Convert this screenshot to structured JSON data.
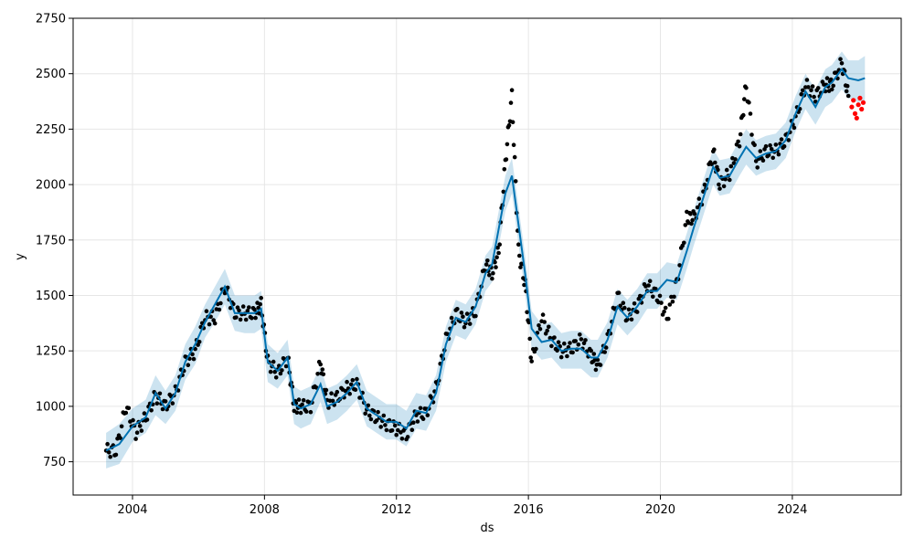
{
  "chart_data": {
    "type": "line",
    "title": "",
    "xlabel": "ds",
    "ylabel": "y",
    "xlim": [
      2002.2,
      2027.3
    ],
    "ylim": [
      600,
      2750
    ],
    "grid": true,
    "x_ticks": [
      2004,
      2008,
      2012,
      2016,
      2020,
      2024
    ],
    "x_tick_labels": [
      "2004",
      "2008",
      "2012",
      "2016",
      "2020",
      "2024"
    ],
    "y_ticks": [
      750,
      1000,
      1250,
      1500,
      1750,
      2000,
      2250,
      2500,
      2750
    ],
    "y_tick_labels": [
      "750",
      "1000",
      "1250",
      "1500",
      "1750",
      "2000",
      "2250",
      "2500",
      "2750"
    ],
    "colors": {
      "observed": "#000000",
      "recent": "#ff0000",
      "forecast": "#0072B2",
      "band": "#0072B2"
    },
    "forecast": {
      "x": [
        2003.2,
        2003.6,
        2004.0,
        2004.4,
        2004.7,
        2005.0,
        2005.3,
        2005.6,
        2005.9,
        2006.2,
        2006.5,
        2006.8,
        2007.1,
        2007.4,
        2007.7,
        2007.9,
        2008.1,
        2008.4,
        2008.7,
        2008.9,
        2009.1,
        2009.4,
        2009.7,
        2009.9,
        2010.2,
        2010.5,
        2010.8,
        2011.1,
        2011.4,
        2011.7,
        2012.0,
        2012.3,
        2012.6,
        2012.9,
        2013.2,
        2013.5,
        2013.8,
        2014.1,
        2014.4,
        2014.7,
        2014.9,
        2015.1,
        2015.3,
        2015.5,
        2015.7,
        2015.9,
        2016.1,
        2016.4,
        2016.7,
        2017.0,
        2017.3,
        2017.6,
        2017.9,
        2018.1,
        2018.4,
        2018.7,
        2019.0,
        2019.3,
        2019.6,
        2019.9,
        2020.2,
        2020.5,
        2020.8,
        2021.0,
        2021.3,
        2021.6,
        2021.8,
        2022.1,
        2022.4,
        2022.6,
        2022.9,
        2023.2,
        2023.5,
        2023.8,
        2024.1,
        2024.4,
        2024.7,
        2025.0,
        2025.2,
        2025.5,
        2025.7,
        2026.0,
        2026.2
      ],
      "yhat": [
        800,
        830,
        910,
        950,
        1060,
        990,
        1060,
        1200,
        1280,
        1380,
        1460,
        1540,
        1420,
        1420,
        1420,
        1440,
        1200,
        1160,
        1220,
        1010,
        990,
        1010,
        1100,
        1000,
        1020,
        1060,
        1110,
        990,
        960,
        930,
        930,
        900,
        980,
        970,
        1060,
        1280,
        1400,
        1380,
        1450,
        1600,
        1640,
        1800,
        1960,
        2040,
        1820,
        1600,
        1350,
        1290,
        1300,
        1250,
        1260,
        1260,
        1220,
        1220,
        1300,
        1450,
        1400,
        1450,
        1520,
        1520,
        1570,
        1560,
        1700,
        1800,
        1940,
        2080,
        2030,
        2040,
        2120,
        2170,
        2120,
        2140,
        2150,
        2200,
        2320,
        2420,
        2350,
        2440,
        2460,
        2520,
        2480,
        2470,
        2480
      ],
      "yhat_lower": [
        720,
        740,
        840,
        880,
        960,
        920,
        980,
        1120,
        1190,
        1310,
        1380,
        1460,
        1340,
        1330,
        1330,
        1350,
        1110,
        1080,
        1140,
        920,
        900,
        920,
        1020,
        920,
        940,
        980,
        1030,
        910,
        880,
        850,
        850,
        820,
        900,
        890,
        980,
        1200,
        1320,
        1300,
        1370,
        1520,
        1560,
        1720,
        1880,
        1960,
        1730,
        1510,
        1260,
        1210,
        1220,
        1170,
        1170,
        1170,
        1130,
        1130,
        1220,
        1370,
        1320,
        1370,
        1440,
        1440,
        1490,
        1480,
        1620,
        1720,
        1860,
        2000,
        1950,
        1960,
        2040,
        2090,
        2040,
        2060,
        2070,
        2120,
        2240,
        2340,
        2270,
        2350,
        2370,
        2430,
        2390,
        2370,
        2380
      ],
      "yhat_upper": [
        880,
        920,
        990,
        1030,
        1140,
        1070,
        1140,
        1280,
        1360,
        1460,
        1540,
        1620,
        1500,
        1500,
        1500,
        1520,
        1280,
        1240,
        1300,
        1090,
        1070,
        1090,
        1180,
        1080,
        1100,
        1140,
        1190,
        1070,
        1040,
        1010,
        1010,
        980,
        1060,
        1050,
        1140,
        1360,
        1480,
        1460,
        1530,
        1680,
        1720,
        1880,
        2040,
        2120,
        1900,
        1680,
        1430,
        1370,
        1380,
        1330,
        1340,
        1340,
        1300,
        1300,
        1380,
        1530,
        1480,
        1530,
        1600,
        1600,
        1650,
        1640,
        1780,
        1880,
        2020,
        2160,
        2110,
        2120,
        2200,
        2250,
        2200,
        2220,
        2230,
        2280,
        2400,
        2500,
        2430,
        2520,
        2540,
        2600,
        2560,
        2560,
        2580
      ]
    },
    "observed": {
      "x": [
        2003.2,
        2003.5,
        2003.8,
        2004.1,
        2004.4,
        2004.7,
        2005.0,
        2005.3,
        2005.6,
        2005.9,
        2006.2,
        2006.5,
        2006.8,
        2007.1,
        2007.4,
        2007.7,
        2007.9,
        2008.1,
        2008.4,
        2008.7,
        2008.9,
        2009.1,
        2009.4,
        2009.7,
        2009.9,
        2010.2,
        2010.5,
        2010.8,
        2011.1,
        2011.4,
        2011.7,
        2012.0,
        2012.3,
        2012.6,
        2012.9,
        2013.2,
        2013.5,
        2013.8,
        2014.1,
        2014.4,
        2014.7,
        2014.9,
        2015.1,
        2015.3,
        2015.5,
        2015.7,
        2015.9,
        2016.1,
        2016.4,
        2016.7,
        2017.0,
        2017.3,
        2017.6,
        2017.9,
        2018.1,
        2018.4,
        2018.7,
        2019.0,
        2019.3,
        2019.6,
        2019.9,
        2020.2,
        2020.5,
        2020.8,
        2021.0,
        2021.3,
        2021.6,
        2021.8,
        2022.1,
        2022.4,
        2022.6,
        2022.9,
        2023.2,
        2023.5,
        2023.8,
        2024.1,
        2024.4,
        2024.7,
        2025.0,
        2025.2,
        2025.5,
        2025.7
      ],
      "y": [
        800,
        800,
        1000,
        880,
        950,
        1050,
        1000,
        1060,
        1200,
        1250,
        1400,
        1400,
        1540,
        1420,
        1420,
        1420,
        1460,
        1200,
        1150,
        1220,
        1000,
        1000,
        1000,
        1200,
        1020,
        1040,
        1080,
        1100,
        980,
        950,
        920,
        900,
        870,
        960,
        970,
        1080,
        1300,
        1420,
        1380,
        1430,
        1640,
        1600,
        1700,
        2100,
        2400,
        1700,
        1550,
        1200,
        1400,
        1300,
        1250,
        1260,
        1300,
        1230,
        1180,
        1300,
        1500,
        1400,
        1450,
        1550,
        1500,
        1400,
        1560,
        1850,
        1850,
        1950,
        2150,
        2000,
        2050,
        2200,
        2450,
        2100,
        2150,
        2150,
        2200,
        2300,
        2450,
        2400,
        2450,
        2450,
        2550,
        2400
      ]
    },
    "recent": {
      "x": [
        2025.8,
        2025.85,
        2025.9,
        2025.95,
        2026.0,
        2026.05,
        2026.1,
        2026.15
      ],
      "y": [
        2350,
        2380,
        2320,
        2300,
        2360,
        2390,
        2340,
        2370
      ]
    }
  }
}
